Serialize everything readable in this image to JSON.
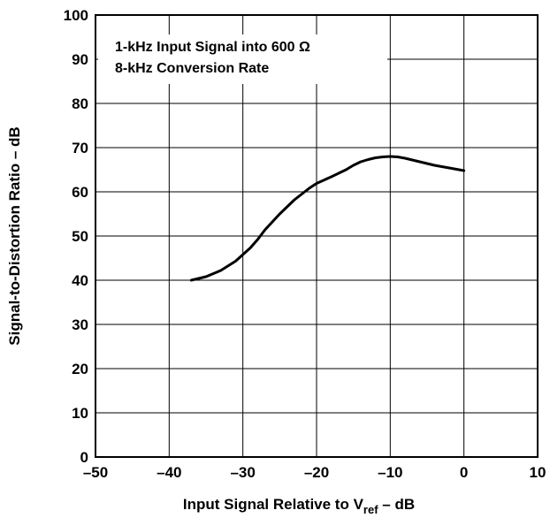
{
  "chart_data": {
    "type": "line",
    "title": "",
    "xlabel": "Input Signal Relative to V",
    "xlabel_subscript": "ref",
    "xlabel_suffix": " – dB",
    "ylabel": "Signal-to-Distortion Ratio – dB",
    "xlim": [
      -50,
      10
    ],
    "ylim": [
      0,
      100
    ],
    "x_ticks": [
      -50,
      -40,
      -30,
      -20,
      -10,
      0,
      10
    ],
    "x_tick_labels": [
      "–50",
      "–40",
      "–30",
      "–20",
      "–10",
      "0",
      "10"
    ],
    "y_ticks": [
      0,
      10,
      20,
      30,
      40,
      50,
      60,
      70,
      80,
      90,
      100
    ],
    "y_tick_labels": [
      "0",
      "10",
      "20",
      "30",
      "40",
      "50",
      "60",
      "70",
      "80",
      "90",
      "100"
    ],
    "grid": true,
    "annotation_lines": [
      "1-kHz Input Signal into 600 Ω",
      "8-kHz Conversion Rate"
    ],
    "annotation_placement": "top-left",
    "series": [
      {
        "x": [
          -37,
          -35,
          -33,
          -31,
          -29,
          -28,
          -27,
          -25,
          -23,
          -21,
          -20,
          -18,
          -16,
          -15,
          -14,
          -13,
          -12,
          -11,
          -10,
          -9,
          -8,
          -7,
          -6,
          -5,
          -4,
          -3,
          -2,
          -1,
          0
        ],
        "y": [
          40,
          40.8,
          42.2,
          44.3,
          47.3,
          49.2,
          51.4,
          55.0,
          58.2,
          60.8,
          61.9,
          63.4,
          65.0,
          66.0,
          66.8,
          67.3,
          67.7,
          67.9,
          68.0,
          67.9,
          67.6,
          67.2,
          66.8,
          66.4,
          66.0,
          65.7,
          65.4,
          65.1,
          64.8
        ]
      }
    ]
  }
}
